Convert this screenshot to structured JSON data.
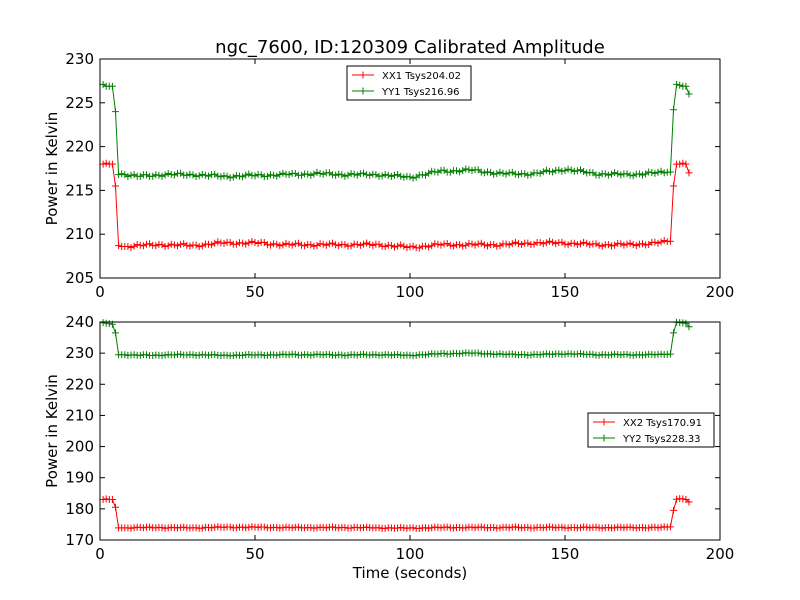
{
  "title": "ngc_7600, ID:120309 Calibrated Amplitude",
  "xlabel": "Time (seconds)",
  "chart_data": [
    {
      "type": "line",
      "title": "ngc_7600, ID:120309 Calibrated Amplitude",
      "xlabel": "",
      "ylabel": "Power in Kelvin",
      "xlim": [
        0,
        200
      ],
      "ylim": [
        205,
        230
      ],
      "xticks": [
        0,
        50,
        100,
        150,
        200
      ],
      "yticks": [
        205,
        210,
        215,
        220,
        225,
        230
      ],
      "grid": false,
      "legend": "top-center",
      "series": [
        {
          "name": "XX1 Tsys204.02",
          "color": "#ff0000",
          "x": [
            1,
            2,
            3,
            4,
            5,
            6,
            7,
            8,
            12,
            20,
            30,
            40,
            50,
            60,
            70,
            80,
            90,
            100,
            110,
            120,
            130,
            140,
            150,
            160,
            170,
            180,
            184,
            185,
            186,
            187,
            188,
            189,
            190
          ],
          "y": [
            218.0,
            218.1,
            218.0,
            218.0,
            215.5,
            208.7,
            208.6,
            208.6,
            208.7,
            208.8,
            208.7,
            209.0,
            209.0,
            208.8,
            208.8,
            208.8,
            208.8,
            208.5,
            208.8,
            208.8,
            208.8,
            209.0,
            209.0,
            208.8,
            208.8,
            209.0,
            209.2,
            215.5,
            218.0,
            218.0,
            218.1,
            218.0,
            217.0
          ]
        },
        {
          "name": "YY1 Tsys216.96",
          "color": "#007f00",
          "x": [
            1,
            2,
            3,
            4,
            5,
            6,
            7,
            8,
            12,
            20,
            30,
            40,
            50,
            60,
            70,
            80,
            90,
            100,
            110,
            120,
            130,
            140,
            150,
            160,
            170,
            180,
            184,
            185,
            186,
            187,
            188,
            189,
            190
          ],
          "y": [
            227.1,
            226.9,
            226.9,
            226.9,
            224.0,
            216.8,
            216.9,
            216.8,
            216.6,
            216.8,
            216.8,
            216.6,
            216.7,
            216.8,
            216.9,
            216.8,
            216.8,
            216.5,
            217.2,
            217.3,
            216.9,
            216.9,
            217.4,
            216.9,
            216.8,
            217.0,
            217.1,
            224.2,
            227.1,
            227.0,
            226.9,
            226.9,
            226.0
          ]
        }
      ]
    },
    {
      "type": "line",
      "title": "",
      "xlabel": "Time (seconds)",
      "ylabel": "Power in Kelvin",
      "xlim": [
        0,
        200
      ],
      "ylim": [
        170,
        240
      ],
      "xticks": [
        0,
        50,
        100,
        150,
        200
      ],
      "yticks": [
        170,
        180,
        190,
        200,
        210,
        220,
        230,
        240
      ],
      "grid": false,
      "legend": "center-right",
      "series": [
        {
          "name": "XX2 Tsys170.91",
          "color": "#ff0000",
          "x": [
            1,
            2,
            3,
            4,
            5,
            6,
            7,
            8,
            12,
            20,
            30,
            40,
            50,
            60,
            70,
            80,
            90,
            100,
            110,
            120,
            130,
            140,
            150,
            160,
            170,
            180,
            184,
            185,
            186,
            187,
            188,
            189,
            190
          ],
          "y": [
            183.0,
            183.2,
            183.0,
            183.0,
            180.5,
            173.9,
            173.9,
            173.9,
            174.0,
            174.0,
            173.9,
            174.1,
            174.1,
            174.0,
            174.0,
            174.0,
            173.9,
            173.8,
            174.0,
            174.0,
            174.0,
            174.0,
            174.0,
            174.0,
            174.0,
            174.0,
            174.2,
            179.5,
            183.1,
            183.3,
            183.2,
            183.0,
            182.2
          ]
        },
        {
          "name": "YY2 Tsys228.33",
          "color": "#007f00",
          "x": [
            1,
            2,
            3,
            4,
            5,
            6,
            7,
            8,
            12,
            20,
            30,
            40,
            50,
            60,
            70,
            80,
            90,
            100,
            110,
            120,
            130,
            140,
            150,
            160,
            170,
            180,
            184,
            185,
            186,
            187,
            188,
            189,
            190
          ],
          "y": [
            239.8,
            239.6,
            239.5,
            239.3,
            236.5,
            229.5,
            229.5,
            229.5,
            229.3,
            229.4,
            229.5,
            229.3,
            229.4,
            229.5,
            229.5,
            229.4,
            229.5,
            229.3,
            229.8,
            230.0,
            229.6,
            229.5,
            229.8,
            229.5,
            229.5,
            229.5,
            229.7,
            236.5,
            239.9,
            239.8,
            239.7,
            239.6,
            238.5
          ]
        }
      ]
    }
  ]
}
